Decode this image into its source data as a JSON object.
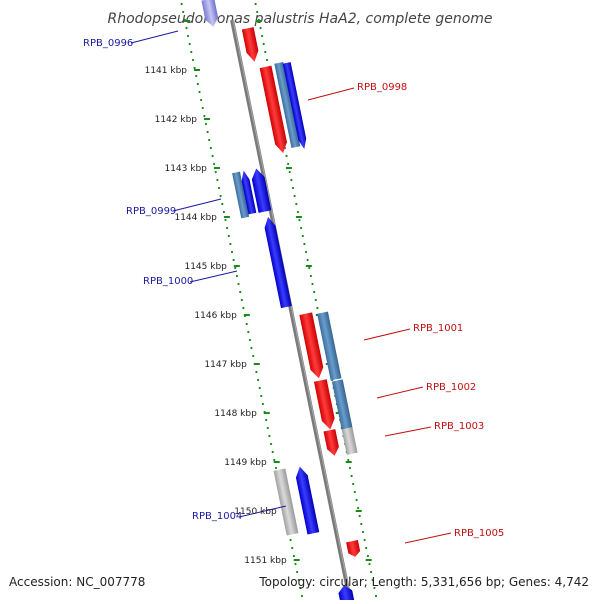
{
  "title": "Rhodopseudomonas palustris HaA2, complete genome",
  "footer": {
    "accession": "Accession: NC_007778",
    "summary": "Topology: circular; Length: 5,331,656 bp; Genes: 4,742"
  },
  "colors": {
    "forward": "#1f1fe6",
    "reverse": "#e61e1e",
    "cds_steel": "#4a7fb0",
    "pseudo": "#b4b4b4",
    "backbone": "#808080",
    "ruler": "#1a8a1a",
    "forward_label": "#1a1aa0",
    "reverse_label": "#c01010"
  },
  "ticks": [
    {
      "label": "1141 kbp"
    },
    {
      "label": "1142 kbp"
    },
    {
      "label": "1143 kbp"
    },
    {
      "label": "1144 kbp"
    },
    {
      "label": "1145 kbp"
    },
    {
      "label": "1146 kbp"
    },
    {
      "label": "1147 kbp"
    },
    {
      "label": "1148 kbp"
    },
    {
      "label": "1149 kbp"
    },
    {
      "label": "1150 kbp"
    },
    {
      "label": "1151 kbp"
    }
  ],
  "gene_labels": [
    {
      "text": "RPB_0996",
      "strand": "forward"
    },
    {
      "text": "RPB_0998",
      "strand": "reverse"
    },
    {
      "text": "RPB_0999",
      "strand": "forward"
    },
    {
      "text": "RPB_1000",
      "strand": "forward"
    },
    {
      "text": "RPB_1001",
      "strand": "reverse"
    },
    {
      "text": "RPB_1002",
      "strand": "reverse"
    },
    {
      "text": "RPB_1003",
      "strand": "reverse"
    },
    {
      "text": "RPB_1004",
      "strand": "forward"
    },
    {
      "text": "RPB_1005",
      "strand": "reverse"
    }
  ]
}
